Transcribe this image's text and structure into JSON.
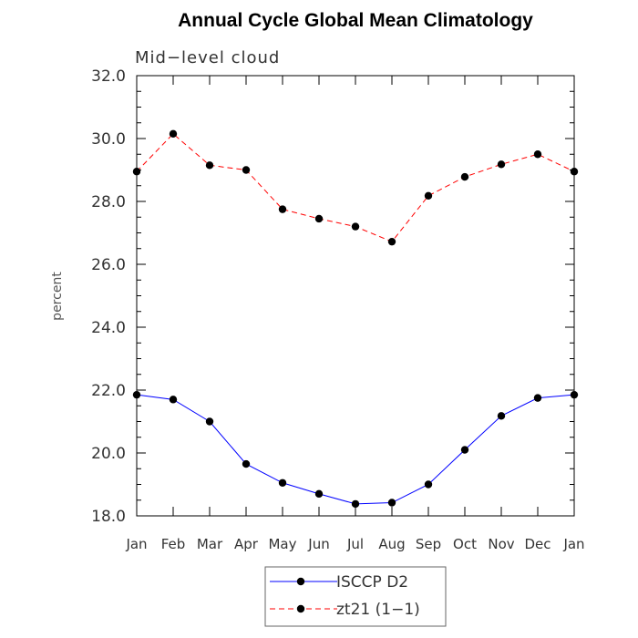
{
  "chart_data": {
    "type": "line",
    "title": "Annual Cycle Global Mean Climatology",
    "subtitle": "Mid−level cloud",
    "ylabel": "percent",
    "xlabel": "",
    "ylim": [
      18.0,
      32.0
    ],
    "yticks": [
      "18.0",
      "20.0",
      "22.0",
      "24.0",
      "26.0",
      "28.0",
      "30.0",
      "32.0"
    ],
    "categories": [
      "Jan",
      "Feb",
      "Mar",
      "Apr",
      "May",
      "Jun",
      "Jul",
      "Aug",
      "Sep",
      "Oct",
      "Nov",
      "Dec",
      "Jan"
    ],
    "series": [
      {
        "name": "ISCCP D2",
        "color": "#0000ff",
        "dash": "solid",
        "marker": "filled-circle",
        "values": [
          21.85,
          21.7,
          21.0,
          19.65,
          19.05,
          18.7,
          18.38,
          18.42,
          19.0,
          20.1,
          21.18,
          21.75,
          21.85
        ]
      },
      {
        "name": "zt21 (1−1)",
        "color": "#ff0000",
        "dash": "dashed",
        "marker": "filled-circle",
        "values": [
          28.95,
          30.15,
          29.15,
          29.0,
          27.75,
          27.45,
          27.2,
          26.72,
          28.18,
          28.78,
          29.18,
          29.5,
          28.95
        ]
      }
    ],
    "grid": false,
    "legend_position": "bottom-center"
  }
}
